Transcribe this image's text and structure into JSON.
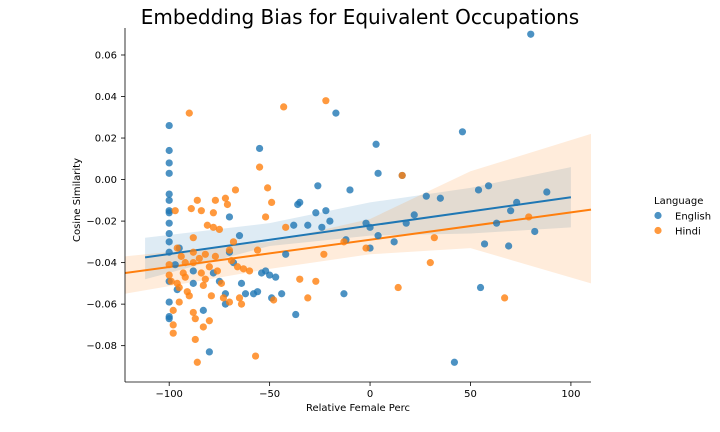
{
  "chart_data": {
    "type": "scatter",
    "title": "Embedding Bias for Equivalent Occupations",
    "xlabel": "Relative Female Perc",
    "ylabel": "Cosine Similarity",
    "xlim": [
      -122,
      110
    ],
    "ylim": [
      -0.0975,
      0.073
    ],
    "x_ticks": [
      -100,
      -50,
      0,
      50,
      100
    ],
    "x_tick_labels": [
      "−100",
      "−50",
      "0",
      "50",
      "100"
    ],
    "y_ticks": [
      -0.08,
      -0.06,
      -0.04,
      -0.02,
      0.0,
      0.02,
      0.04,
      0.06
    ],
    "y_tick_labels": [
      "−0.08",
      "−0.06",
      "−0.04",
      "−0.02",
      "0.00",
      "0.02",
      "0.04",
      "0.06"
    ],
    "grid": false,
    "legend": {
      "title": "Language",
      "placement": "right"
    },
    "series": [
      {
        "name": "English",
        "color": "#1f77b4",
        "regression": {
          "x": [
            -112,
            100
          ],
          "y": [
            -0.0375,
            -0.0085
          ]
        },
        "ci_band": {
          "x": [
            -112,
            -50,
            0,
            50,
            100
          ],
          "lower": [
            -0.048,
            -0.032,
            -0.027,
            -0.026,
            -0.023
          ],
          "upper": [
            -0.028,
            -0.021,
            -0.011,
            -0.004,
            0.006
          ]
        },
        "points": [
          [
            -100,
            0.026
          ],
          [
            -100,
            0.014
          ],
          [
            -100,
            0.008
          ],
          [
            -100,
            0.003
          ],
          [
            -100,
            -0.007
          ],
          [
            -100,
            -0.01
          ],
          [
            -100,
            -0.015
          ],
          [
            -100,
            -0.016
          ],
          [
            -100,
            -0.021
          ],
          [
            -100,
            -0.026
          ],
          [
            -100,
            -0.03
          ],
          [
            -100,
            -0.035
          ],
          [
            -100,
            -0.049
          ],
          [
            -100,
            -0.059
          ],
          [
            -100,
            -0.066
          ],
          [
            -100,
            -0.067
          ],
          [
            -97,
            -0.041
          ],
          [
            -96,
            -0.053
          ],
          [
            -95,
            -0.033
          ],
          [
            -88,
            -0.044
          ],
          [
            -88,
            -0.05
          ],
          [
            -83,
            -0.063
          ],
          [
            -80,
            -0.083
          ],
          [
            -78,
            -0.045
          ],
          [
            -75,
            -0.049
          ],
          [
            -72,
            -0.055
          ],
          [
            -72,
            -0.06
          ],
          [
            -70,
            -0.018
          ],
          [
            -70,
            -0.035
          ],
          [
            -68,
            -0.04
          ],
          [
            -65,
            -0.027
          ],
          [
            -64,
            -0.05
          ],
          [
            -62,
            -0.055
          ],
          [
            -58,
            -0.055
          ],
          [
            -56,
            -0.054
          ],
          [
            -55,
            0.015
          ],
          [
            -54,
            -0.045
          ],
          [
            -52,
            -0.044
          ],
          [
            -50,
            -0.046
          ],
          [
            -49,
            -0.057
          ],
          [
            -47,
            -0.047
          ],
          [
            -44,
            -0.055
          ],
          [
            -42,
            -0.036
          ],
          [
            -38,
            -0.022
          ],
          [
            -37,
            -0.065
          ],
          [
            -36,
            -0.012
          ],
          [
            -35,
            -0.011
          ],
          [
            -31,
            -0.022
          ],
          [
            -27,
            -0.016
          ],
          [
            -26,
            -0.003
          ],
          [
            -24,
            -0.023
          ],
          [
            -22,
            -0.015
          ],
          [
            -20,
            -0.02
          ],
          [
            -17,
            0.032
          ],
          [
            -13,
            -0.055
          ],
          [
            -12,
            -0.029
          ],
          [
            -10,
            -0.005
          ],
          [
            -2,
            -0.021
          ],
          [
            0,
            -0.023
          ],
          [
            0,
            -0.033
          ],
          [
            3,
            0.017
          ],
          [
            4,
            0.003
          ],
          [
            4,
            -0.027
          ],
          [
            12,
            -0.03
          ],
          [
            16,
            0.002
          ],
          [
            18,
            -0.021
          ],
          [
            22,
            -0.017
          ],
          [
            28,
            -0.008
          ],
          [
            35,
            -0.009
          ],
          [
            42,
            -0.088
          ],
          [
            46,
            0.023
          ],
          [
            54,
            -0.005
          ],
          [
            55,
            -0.052
          ],
          [
            57,
            -0.031
          ],
          [
            59,
            -0.003
          ],
          [
            63,
            -0.021
          ],
          [
            69,
            -0.032
          ],
          [
            70,
            -0.015
          ],
          [
            73,
            -0.011
          ],
          [
            80,
            0.07
          ],
          [
            82,
            -0.025
          ],
          [
            88,
            -0.006
          ]
        ]
      },
      {
        "name": "Hindi",
        "color": "#ff7f0e",
        "regression": {
          "x": [
            -122,
            110
          ],
          "y": [
            -0.045,
            -0.0145
          ]
        },
        "ci_band": {
          "x": [
            -122,
            -50,
            0,
            50,
            110
          ],
          "lower": [
            -0.055,
            -0.043,
            -0.036,
            -0.033,
            -0.05
          ],
          "upper": [
            -0.037,
            -0.03,
            -0.019,
            0.004,
            0.022
          ]
        },
        "points": [
          [
            -100,
            -0.041
          ],
          [
            -100,
            -0.046
          ],
          [
            -99,
            -0.049
          ],
          [
            -98,
            -0.063
          ],
          [
            -98,
            -0.07
          ],
          [
            -98,
            -0.074
          ],
          [
            -97,
            -0.015
          ],
          [
            -96,
            -0.033
          ],
          [
            -96,
            -0.05
          ],
          [
            -95,
            -0.052
          ],
          [
            -95,
            -0.059
          ],
          [
            -94,
            -0.037
          ],
          [
            -93,
            -0.045
          ],
          [
            -92,
            -0.04
          ],
          [
            -92,
            -0.047
          ],
          [
            -91,
            -0.054
          ],
          [
            -90,
            0.032
          ],
          [
            -90,
            -0.056
          ],
          [
            -89,
            -0.014
          ],
          [
            -88,
            -0.028
          ],
          [
            -88,
            -0.035
          ],
          [
            -88,
            -0.04
          ],
          [
            -88,
            -0.064
          ],
          [
            -87,
            -0.067
          ],
          [
            -87,
            -0.077
          ],
          [
            -86,
            -0.088
          ],
          [
            -86,
            -0.01
          ],
          [
            -85,
            -0.038
          ],
          [
            -84,
            -0.015
          ],
          [
            -84,
            -0.045
          ],
          [
            -83,
            -0.051
          ],
          [
            -83,
            -0.071
          ],
          [
            -82,
            -0.036
          ],
          [
            -82,
            -0.048
          ],
          [
            -81,
            -0.022
          ],
          [
            -80,
            -0.042
          ],
          [
            -80,
            -0.068
          ],
          [
            -79,
            -0.056
          ],
          [
            -78,
            -0.016
          ],
          [
            -78,
            -0.023
          ],
          [
            -77,
            -0.01
          ],
          [
            -77,
            -0.037
          ],
          [
            -76,
            -0.044
          ],
          [
            -75,
            -0.024
          ],
          [
            -74,
            -0.05
          ],
          [
            -73,
            -0.057
          ],
          [
            -72,
            -0.009
          ],
          [
            -71,
            -0.012
          ],
          [
            -70,
            -0.034
          ],
          [
            -70,
            -0.059
          ],
          [
            -69,
            -0.039
          ],
          [
            -68,
            -0.03
          ],
          [
            -67,
            -0.005
          ],
          [
            -66,
            -0.042
          ],
          [
            -65,
            -0.057
          ],
          [
            -64,
            -0.06
          ],
          [
            -63,
            -0.043
          ],
          [
            -60,
            -0.044
          ],
          [
            -57,
            -0.085
          ],
          [
            -56,
            -0.034
          ],
          [
            -55,
            0.006
          ],
          [
            -52,
            -0.018
          ],
          [
            -51,
            -0.004
          ],
          [
            -49,
            -0.011
          ],
          [
            -48,
            -0.058
          ],
          [
            -43,
            0.035
          ],
          [
            -42,
            -0.023
          ],
          [
            -35,
            -0.048
          ],
          [
            -31,
            -0.057
          ],
          [
            -27,
            -0.049
          ],
          [
            -23,
            -0.036
          ],
          [
            -22,
            0.038
          ],
          [
            -13,
            -0.03
          ],
          [
            -2,
            -0.033
          ],
          [
            14,
            -0.052
          ],
          [
            16,
            0.002
          ],
          [
            30,
            -0.04
          ],
          [
            32,
            -0.028
          ],
          [
            67,
            -0.057
          ],
          [
            79,
            -0.018
          ]
        ]
      }
    ]
  }
}
